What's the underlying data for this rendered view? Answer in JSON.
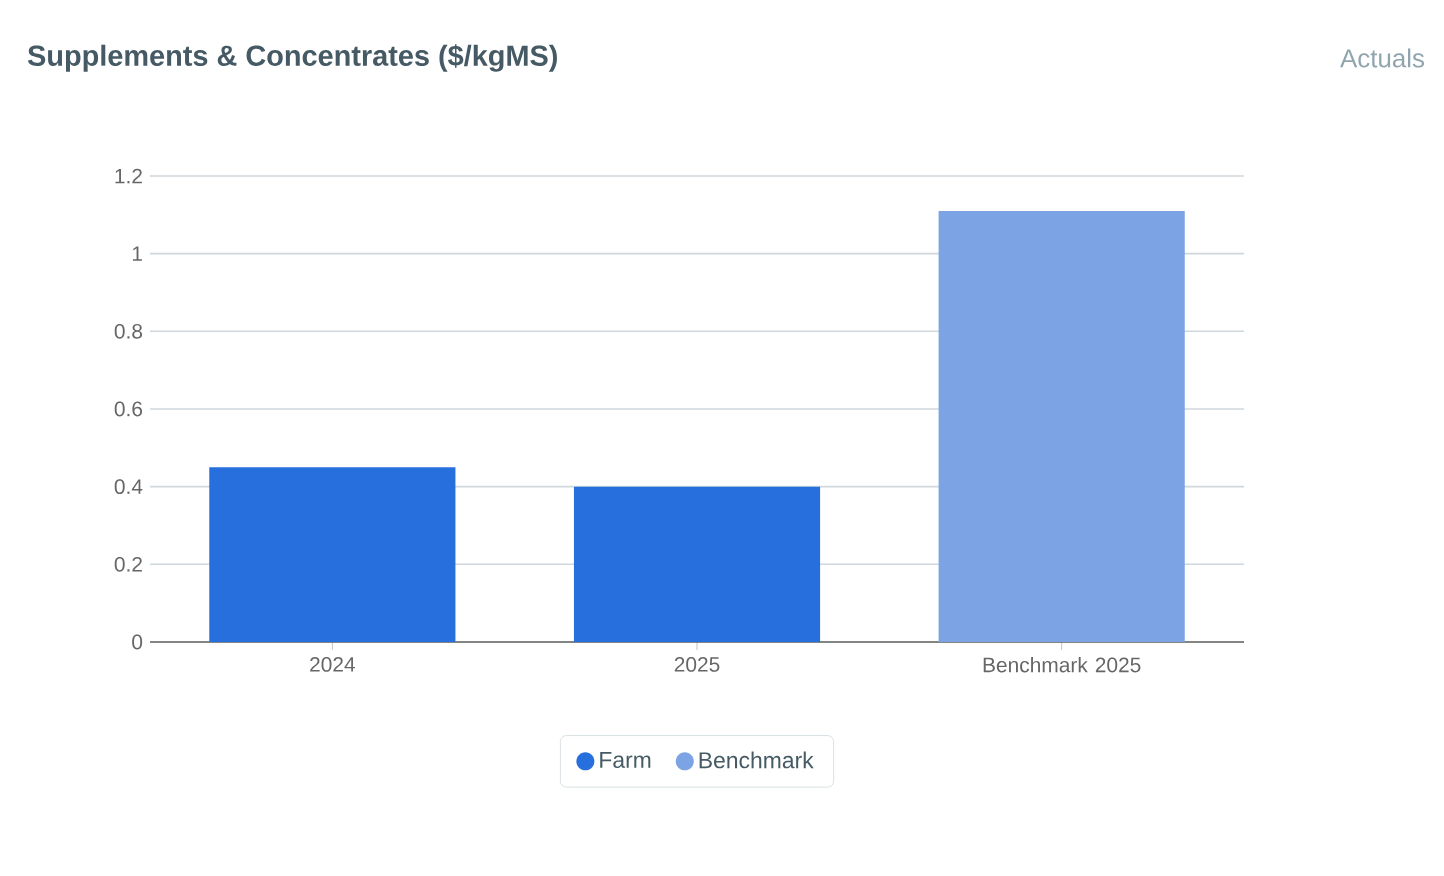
{
  "chart_data": {
    "type": "bar",
    "title": "Supplements & Concentrates ($/kgMS)",
    "subtitle": "Actuals",
    "categories": [
      "2024",
      "2025",
      "Benchmark 2025"
    ],
    "series": [
      {
        "name": "Farm",
        "color": "#276fdc",
        "values": [
          0.45,
          0.4,
          null
        ]
      },
      {
        "name": "Benchmark",
        "color": "#7ca3e3",
        "values": [
          null,
          null,
          1.11
        ]
      }
    ],
    "ylim": [
      0,
      1.2
    ],
    "yticks": [
      0,
      0.2,
      0.4,
      0.6,
      0.8,
      1,
      1.2
    ],
    "grid": "y",
    "legend": "bottom"
  }
}
